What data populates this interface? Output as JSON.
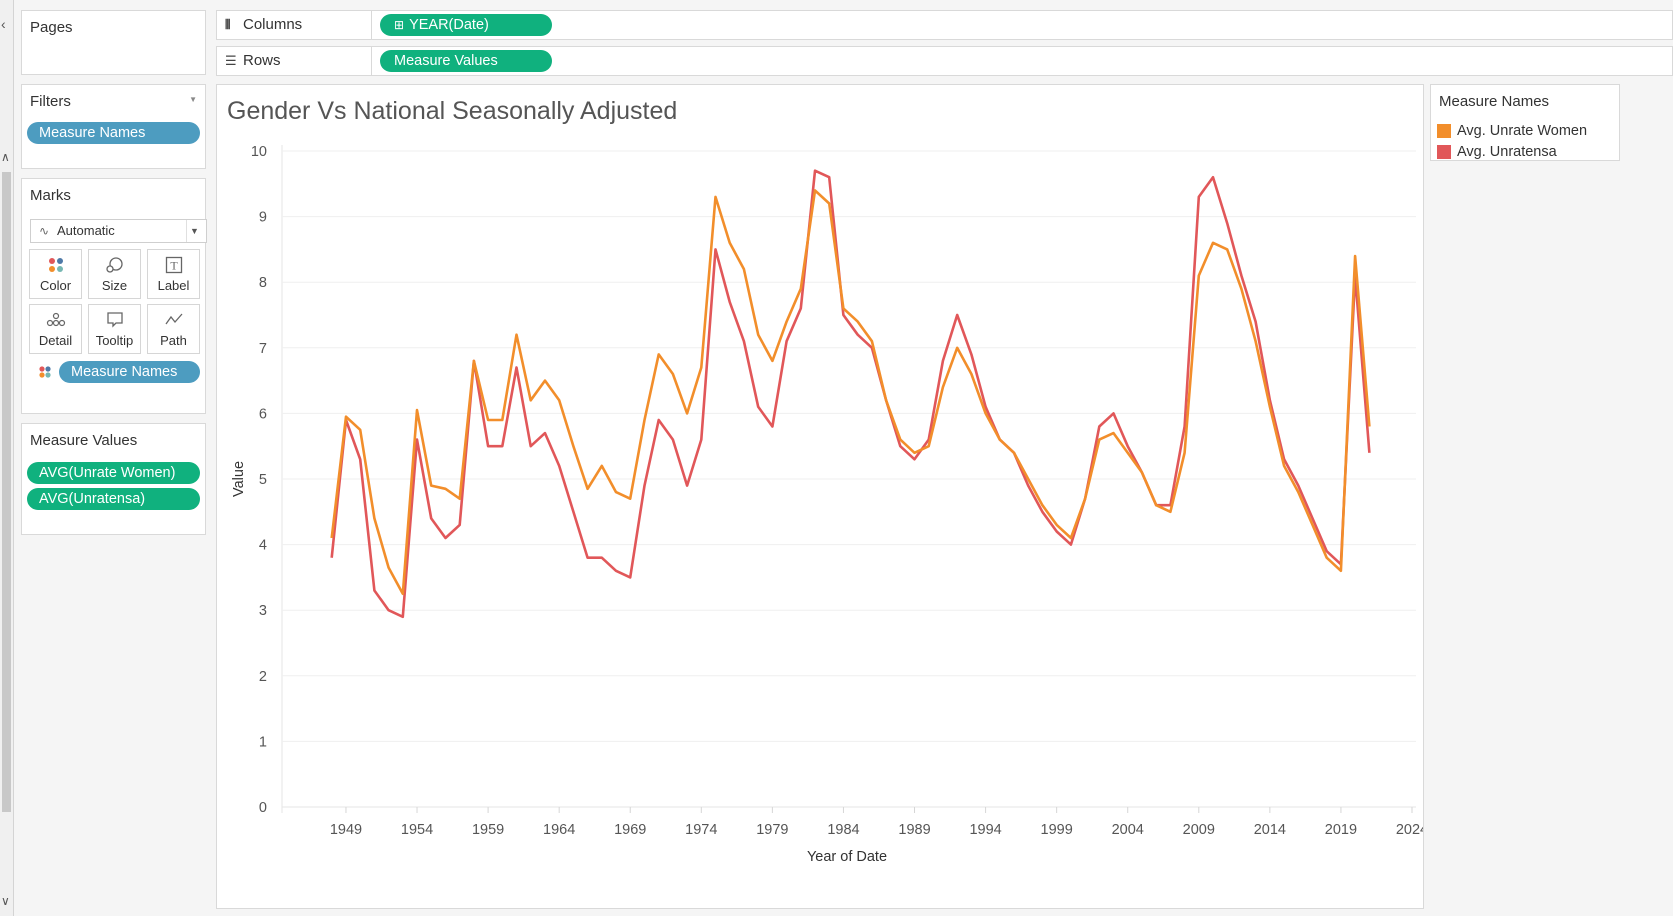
{
  "left_panel": {
    "pages_title": "Pages",
    "filters_title": "Filters",
    "filter_pill": "Measure Names",
    "marks_title": "Marks",
    "marks_type": "Automatic",
    "mark_buttons": {
      "color": "Color",
      "size": "Size",
      "label": "Label",
      "detail": "Detail",
      "tooltip": "Tooltip",
      "path": "Path"
    },
    "marks_color_pill": "Measure Names",
    "measure_values_title": "Measure Values",
    "measure_values_pills": [
      "AVG(Unrate Women)",
      "AVG(Unratensa)"
    ]
  },
  "shelves": {
    "columns_label": "Columns",
    "columns_pill": "YEAR(Date)",
    "rows_label": "Rows",
    "rows_pill": "Measure Values"
  },
  "legend": {
    "title": "Measure Names",
    "items": [
      {
        "label": "Avg. Unrate Women",
        "color": "#f28e2b"
      },
      {
        "label": "Avg. Unratensa",
        "color": "#e15759"
      }
    ]
  },
  "colors": {
    "pill_blue": "#4d9cc0",
    "pill_green": "#10b17e"
  },
  "chart_data": {
    "type": "line",
    "title": "Gender Vs National Seasonally Adjusted",
    "xlabel": "Year of Date",
    "ylabel": "Value",
    "xlim": [
      1944.5,
      2024
    ],
    "ylim": [
      0,
      10
    ],
    "x_ticks": [
      1949,
      1954,
      1959,
      1964,
      1969,
      1974,
      1979,
      1984,
      1989,
      1994,
      1999,
      2004,
      2009,
      2014,
      2019,
      2024
    ],
    "y_ticks": [
      0,
      1,
      2,
      3,
      4,
      5,
      6,
      7,
      8,
      9,
      10
    ],
    "grid": true,
    "legend_position": "right",
    "x": [
      1948,
      1949,
      1950,
      1951,
      1952,
      1953,
      1954,
      1955,
      1956,
      1957,
      1958,
      1959,
      1960,
      1961,
      1962,
      1963,
      1964,
      1965,
      1966,
      1967,
      1968,
      1969,
      1970,
      1971,
      1972,
      1973,
      1974,
      1975,
      1976,
      1977,
      1978,
      1979,
      1980,
      1981,
      1982,
      1983,
      1984,
      1985,
      1986,
      1987,
      1988,
      1989,
      1990,
      1991,
      1992,
      1993,
      1994,
      1995,
      1996,
      1997,
      1998,
      1999,
      2000,
      2001,
      2002,
      2003,
      2004,
      2005,
      2006,
      2007,
      2008,
      2009,
      2010,
      2011,
      2012,
      2013,
      2014,
      2015,
      2016,
      2017,
      2018,
      2019,
      2020,
      2021
    ],
    "series": [
      {
        "name": "Avg. Unrate Women",
        "color": "#f28e2b",
        "values": [
          4.1,
          5.95,
          5.75,
          4.4,
          3.65,
          3.25,
          6.05,
          4.9,
          4.85,
          4.7,
          6.8,
          5.9,
          5.9,
          7.2,
          6.2,
          6.5,
          6.2,
          5.5,
          4.85,
          5.2,
          4.8,
          4.7,
          5.9,
          6.9,
          6.6,
          6.0,
          6.7,
          9.3,
          8.6,
          8.2,
          7.2,
          6.8,
          7.4,
          7.9,
          9.4,
          9.2,
          7.6,
          7.4,
          7.1,
          6.2,
          5.6,
          5.4,
          5.5,
          6.4,
          7.0,
          6.6,
          6.0,
          5.6,
          5.4,
          5.0,
          4.6,
          4.3,
          4.1,
          4.7,
          5.6,
          5.7,
          5.4,
          5.1,
          4.6,
          4.5,
          5.4,
          8.1,
          8.6,
          8.5,
          7.9,
          7.1,
          6.1,
          5.2,
          4.8,
          4.3,
          3.8,
          3.6,
          8.4,
          5.8
        ]
      },
      {
        "name": "Avg. Unratensa",
        "color": "#e15759",
        "values": [
          3.8,
          5.9,
          5.3,
          3.3,
          3.0,
          2.9,
          5.6,
          4.4,
          4.1,
          4.3,
          6.8,
          5.5,
          5.5,
          6.7,
          5.5,
          5.7,
          5.2,
          4.5,
          3.8,
          3.8,
          3.6,
          3.5,
          4.9,
          5.9,
          5.6,
          4.9,
          5.6,
          8.5,
          7.7,
          7.1,
          6.1,
          5.8,
          7.1,
          7.6,
          9.7,
          9.6,
          7.5,
          7.2,
          7.0,
          6.2,
          5.5,
          5.3,
          5.6,
          6.8,
          7.5,
          6.9,
          6.1,
          5.6,
          5.4,
          4.9,
          4.5,
          4.2,
          4.0,
          4.7,
          5.8,
          6.0,
          5.5,
          5.1,
          4.6,
          4.6,
          5.8,
          9.3,
          9.6,
          8.9,
          8.1,
          7.4,
          6.2,
          5.3,
          4.9,
          4.4,
          3.9,
          3.7,
          8.1,
          5.4
        ]
      }
    ]
  }
}
